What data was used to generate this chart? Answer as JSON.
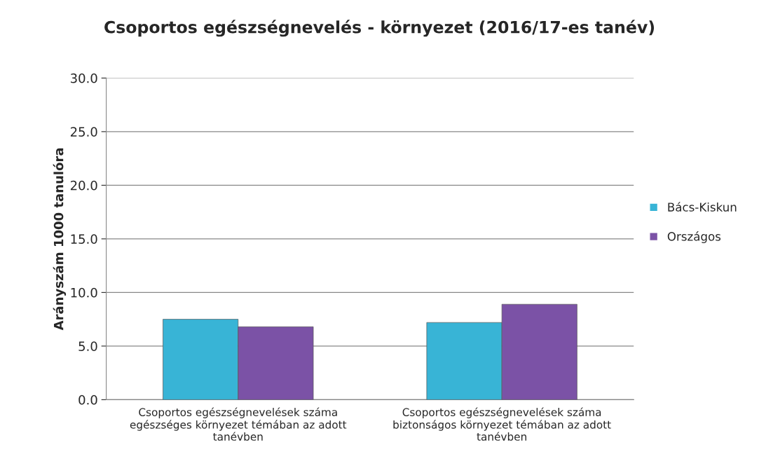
{
  "chart_data": {
    "type": "bar",
    "title": "Csoportos egészségnevelés - környezet (2016/17-es tanév)",
    "ylabel": "Arányszám 1000 tanulóra",
    "categories": [
      "Csoportos egészségnevelések száma egészséges környezet témában az adott tanévben",
      "Csoportos egészségnevelések száma biztonságos környezet témában az adott tanévben"
    ],
    "series": [
      {
        "name": "Bács-Kiskun",
        "color": "#38b4d6",
        "values": [
          7.5,
          7.2
        ]
      },
      {
        "name": "Országos",
        "color": "#7b52a6",
        "values": [
          6.8,
          8.9
        ]
      }
    ],
    "ylim": [
      0,
      30
    ],
    "yticks": [
      {
        "value": 0,
        "label": "0.0"
      },
      {
        "value": 5,
        "label": "5.0"
      },
      {
        "value": 10,
        "label": "10.0"
      },
      {
        "value": 15,
        "label": "15.0"
      },
      {
        "value": 20,
        "label": "20.0"
      },
      {
        "value": 25,
        "label": "25.0"
      },
      {
        "value": 30,
        "label": "30.0"
      }
    ],
    "grid": "y",
    "legend": "right"
  }
}
